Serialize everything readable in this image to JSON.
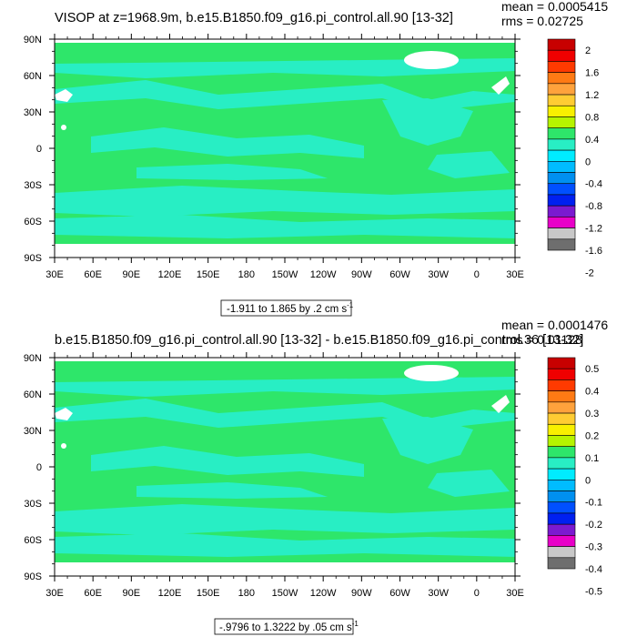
{
  "panels": [
    {
      "title": "VISOP at z=1968.9m, b.e15.B1850.f09_g16.pi_control.all.90 [13-32]",
      "stats": [
        "mean = 0.0005415",
        "rms = 0.02725"
      ],
      "range_label": "-1.911 to 1.865 by .2 cm s",
      "range_sup": "-1",
      "colorbar_labels": [
        "2",
        "1.6",
        "1.2",
        "0.8",
        "0.4",
        "0",
        "-0.4",
        "-0.8",
        "-1.2",
        "-1.6",
        "-2"
      ]
    },
    {
      "title": "b.e15.B1850.f09_g16.pi_control.all.90 [13-32] - b.e15.B1850.f09_g16.pi_control.36 [13-32]",
      "stats": [
        "mean = 0.0001476",
        "rms = 0.01128"
      ],
      "range_label": "-.9796 to 1.3222 by .05 cm s",
      "range_sup": "-1",
      "colorbar_labels": [
        "0.5",
        "0.4",
        "0.3",
        "0.2",
        "0.1",
        "0",
        "-0.1",
        "-0.2",
        "-0.3",
        "-0.4",
        "-0.5"
      ]
    }
  ],
  "axes": {
    "lon_labels": [
      "30E",
      "60E",
      "90E",
      "120E",
      "150E",
      "180",
      "150W",
      "120W",
      "90W",
      "60W",
      "30W",
      "0",
      "30E"
    ],
    "lat_labels": [
      "90N",
      "60N",
      "30N",
      "0",
      "30S",
      "60S",
      "90S"
    ]
  },
  "colorbar_colors": [
    "#c80000",
    "#f00000",
    "#ff3a00",
    "#ff7a14",
    "#ffa23c",
    "#ffcc33",
    "#f8f000",
    "#b6f400",
    "#2ee66a",
    "#28eec4",
    "#00ecff",
    "#00bcff",
    "#0090f0",
    "#0050ff",
    "#0020f0",
    "#7b1ad0",
    "#e800c8",
    "#c8c8c8",
    "#6e6e6e"
  ],
  "field_colors": {
    "background": "#2ee66a",
    "anomaly": "#28eec4",
    "land": "#ffffff"
  }
}
